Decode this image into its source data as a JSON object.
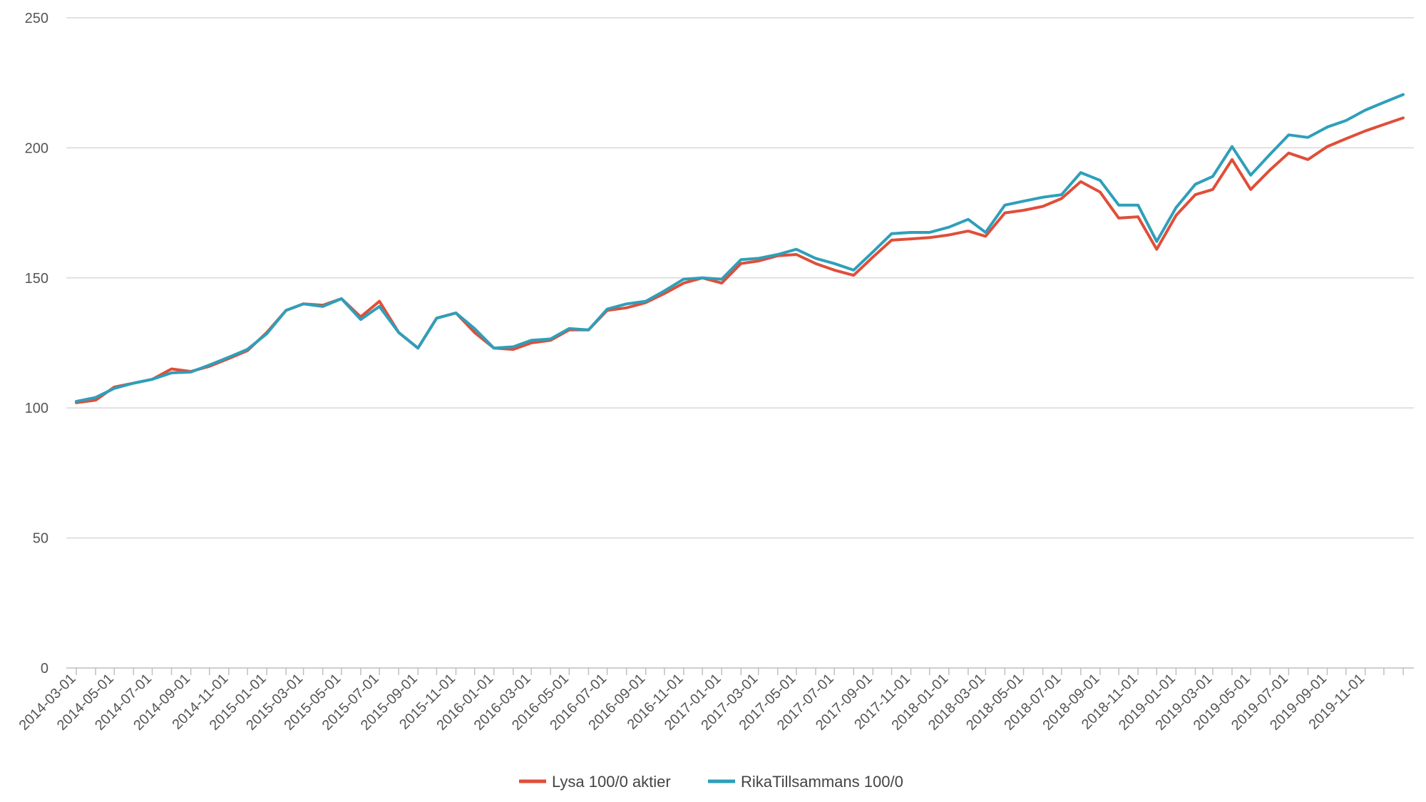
{
  "chart_data": {
    "type": "line",
    "title": "",
    "xlabel": "",
    "ylabel": "",
    "ylim": [
      0,
      250
    ],
    "y_ticks": [
      0,
      50,
      100,
      150,
      200,
      250
    ],
    "grid": true,
    "legend_position": "bottom-center",
    "x_tick_labels": [
      "2014-03-01",
      "2014-05-01",
      "2014-07-01",
      "2014-09-01",
      "2014-11-01",
      "2015-01-01",
      "2015-03-01",
      "2015-05-01",
      "2015-07-01",
      "2015-09-01",
      "2015-11-01",
      "2016-01-01",
      "2016-03-01",
      "2016-05-01",
      "2016-07-01",
      "2016-09-01",
      "2016-11-01",
      "2017-01-01",
      "2017-03-01",
      "2017-05-01",
      "2017-07-01",
      "2017-09-01",
      "2017-11-01",
      "2018-01-01",
      "2018-03-01",
      "2018-05-01",
      "2018-07-01",
      "2018-09-01",
      "2018-11-01",
      "2019-01-01",
      "2019-03-01",
      "2019-05-01",
      "2019-07-01",
      "2019-09-01",
      "2019-11-01"
    ],
    "x": [
      "2014-03-01",
      "2014-04-01",
      "2014-05-01",
      "2014-06-01",
      "2014-07-01",
      "2014-08-01",
      "2014-09-01",
      "2014-10-01",
      "2014-11-01",
      "2014-12-01",
      "2015-01-01",
      "2015-02-01",
      "2015-03-01",
      "2015-04-01",
      "2015-05-01",
      "2015-06-01",
      "2015-07-01",
      "2015-08-01",
      "2015-09-01",
      "2015-10-01",
      "2015-11-01",
      "2015-12-01",
      "2016-01-01",
      "2016-02-01",
      "2016-03-01",
      "2016-04-01",
      "2016-05-01",
      "2016-06-01",
      "2016-07-01",
      "2016-08-01",
      "2016-09-01",
      "2016-10-01",
      "2016-11-01",
      "2016-12-01",
      "2017-01-01",
      "2017-02-01",
      "2017-03-01",
      "2017-04-01",
      "2017-05-01",
      "2017-06-01",
      "2017-07-01",
      "2017-08-01",
      "2017-09-01",
      "2017-10-01",
      "2017-11-01",
      "2017-12-01",
      "2018-01-01",
      "2018-02-01",
      "2018-03-01",
      "2018-04-01",
      "2018-05-01",
      "2018-06-01",
      "2018-07-01",
      "2018-08-01",
      "2018-09-01",
      "2018-10-01",
      "2018-11-01",
      "2018-12-01",
      "2019-01-01",
      "2019-02-01",
      "2019-03-01",
      "2019-04-01",
      "2019-05-01",
      "2019-06-01",
      "2019-07-01",
      "2019-08-01",
      "2019-09-01",
      "2019-10-01",
      "2019-11-01",
      "2019-12-01",
      "2020-01-01"
    ],
    "series": [
      {
        "name": "Lysa 100/0 aktier",
        "color": "#e04e39",
        "values": [
          102,
          103,
          108,
          109.5,
          111,
          115,
          114,
          116,
          119,
          122,
          129,
          137.5,
          140,
          139.5,
          142,
          135,
          141,
          129,
          123,
          134.5,
          136.5,
          129,
          123,
          122.5,
          125,
          126,
          130,
          130,
          137.5,
          138.5,
          140.5,
          144,
          148,
          150,
          148,
          155.5,
          156.5,
          158.5,
          159,
          155.5,
          153,
          151,
          158,
          164.5,
          165,
          165.5,
          166.5,
          168,
          166,
          175,
          176,
          177.5,
          180.5,
          187,
          183,
          173,
          173.5,
          161,
          174,
          182,
          184,
          195.5,
          184,
          191.5,
          198,
          195.5,
          200.5,
          203.5,
          206.5,
          209,
          211.5
        ]
      },
      {
        "name": "RikaTillsammans 100/0",
        "color": "#2e9fba",
        "values": [
          102.5,
          104,
          107.5,
          109.5,
          111,
          113.5,
          113.8,
          116.5,
          119.5,
          122.5,
          128.5,
          137.5,
          140,
          139,
          142,
          134,
          139,
          129,
          123,
          134.5,
          136.5,
          130.5,
          123,
          123.5,
          126,
          126.5,
          130.5,
          130,
          138,
          140,
          141,
          145,
          149.5,
          150,
          149.5,
          157,
          157.5,
          159,
          161,
          157.5,
          155.5,
          153,
          160,
          167,
          167.5,
          167.5,
          169.5,
          172.5,
          167.5,
          178,
          179.5,
          181,
          182,
          190.5,
          187.5,
          178,
          178,
          164,
          177,
          186,
          189,
          200.5,
          189.5,
          197.5,
          205,
          204,
          208,
          210.5,
          214.5,
          217.5,
          220.5
        ]
      }
    ]
  }
}
